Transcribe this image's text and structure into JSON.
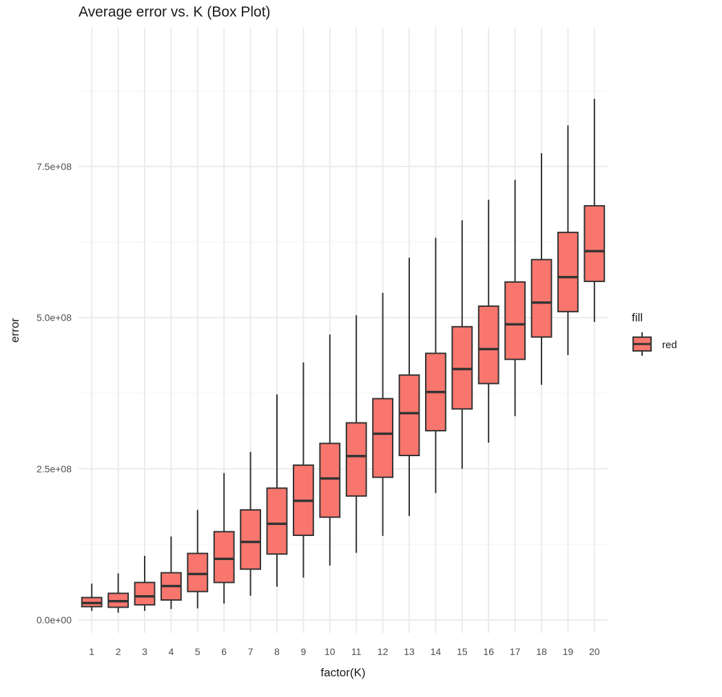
{
  "chart_data": {
    "type": "box",
    "title": "Average error vs. K (Box Plot)",
    "xlabel": "factor(K)",
    "ylabel": "error",
    "categories": [
      "1",
      "2",
      "3",
      "4",
      "5",
      "6",
      "7",
      "8",
      "9",
      "10",
      "11",
      "12",
      "13",
      "14",
      "15",
      "16",
      "17",
      "18",
      "19",
      "20"
    ],
    "ylim": [
      -25000000,
      950000000
    ],
    "y_ticks": [
      0,
      250000000,
      500000000,
      750000000
    ],
    "y_tick_labels": [
      "0.0e+00",
      "2.5e+08",
      "5.0e+08",
      "7.5e+08"
    ],
    "grid": true,
    "legend": {
      "title": "fill",
      "placement": "right",
      "entries": [
        {
          "label": "red",
          "color": "#F8766D"
        }
      ]
    },
    "series": [
      {
        "name": "red",
        "color": "#F8766D",
        "boxes": [
          {
            "category": "1",
            "min": 15000000,
            "q1": 22000000,
            "median": 28000000,
            "q3": 37000000,
            "max": 60000000
          },
          {
            "category": "2",
            "min": 12000000,
            "q1": 21000000,
            "median": 31000000,
            "q3": 44000000,
            "max": 77000000
          },
          {
            "category": "3",
            "min": 15000000,
            "q1": 25000000,
            "median": 39000000,
            "q3": 62000000,
            "max": 106000000
          },
          {
            "category": "4",
            "min": 18000000,
            "q1": 33000000,
            "median": 56000000,
            "q3": 78000000,
            "max": 138000000
          },
          {
            "category": "5",
            "min": 19000000,
            "q1": 47000000,
            "median": 76000000,
            "q3": 110000000,
            "max": 182000000
          },
          {
            "category": "6",
            "min": 27000000,
            "q1": 62000000,
            "median": 101000000,
            "q3": 146000000,
            "max": 243000000
          },
          {
            "category": "7",
            "min": 40000000,
            "q1": 84000000,
            "median": 129000000,
            "q3": 182000000,
            "max": 278000000
          },
          {
            "category": "8",
            "min": 55000000,
            "q1": 109000000,
            "median": 159000000,
            "q3": 218000000,
            "max": 373000000
          },
          {
            "category": "9",
            "min": 70000000,
            "q1": 140000000,
            "median": 197000000,
            "q3": 256000000,
            "max": 426000000
          },
          {
            "category": "10",
            "min": 90000000,
            "q1": 170000000,
            "median": 234000000,
            "q3": 292000000,
            "max": 472000000
          },
          {
            "category": "11",
            "min": 111000000,
            "q1": 205000000,
            "median": 271000000,
            "q3": 326000000,
            "max": 504000000
          },
          {
            "category": "12",
            "min": 139000000,
            "q1": 236000000,
            "median": 308000000,
            "q3": 366000000,
            "max": 541000000
          },
          {
            "category": "13",
            "min": 172000000,
            "q1": 272000000,
            "median": 342000000,
            "q3": 405000000,
            "max": 599000000
          },
          {
            "category": "14",
            "min": 210000000,
            "q1": 313000000,
            "median": 377000000,
            "q3": 441000000,
            "max": 632000000
          },
          {
            "category": "15",
            "min": 250000000,
            "q1": 349000000,
            "median": 415000000,
            "q3": 485000000,
            "max": 661000000
          },
          {
            "category": "16",
            "min": 293000000,
            "q1": 391000000,
            "median": 448000000,
            "q3": 519000000,
            "max": 695000000
          },
          {
            "category": "17",
            "min": 337000000,
            "q1": 431000000,
            "median": 489000000,
            "q3": 559000000,
            "max": 728000000
          },
          {
            "category": "18",
            "min": 389000000,
            "q1": 468000000,
            "median": 525000000,
            "q3": 596000000,
            "max": 772000000
          },
          {
            "category": "19",
            "min": 438000000,
            "q1": 510000000,
            "median": 567000000,
            "q3": 641000000,
            "max": 818000000
          },
          {
            "category": "20",
            "min": 493000000,
            "q1": 560000000,
            "median": 610000000,
            "q3": 685000000,
            "max": 862000000
          }
        ]
      }
    ]
  },
  "colors": {
    "box_fill": "#F8766D",
    "box_stroke": "#333333",
    "grid_major": "#EBEBEB",
    "grid_minor": "#F5F5F5",
    "text": "#1A1A1A",
    "tick_text": "#4D4D4D"
  }
}
